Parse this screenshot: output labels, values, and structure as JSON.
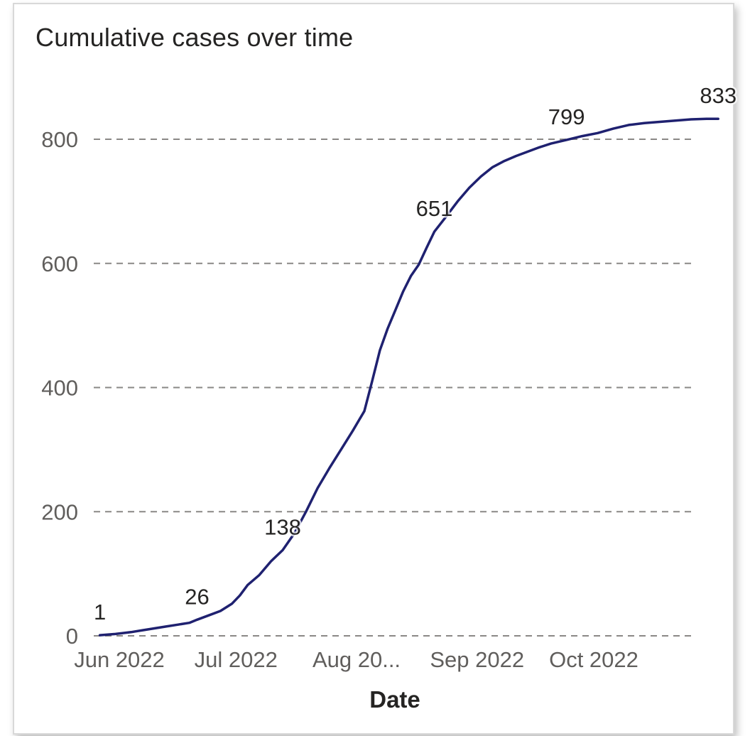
{
  "chart_data": {
    "type": "line",
    "title": "Cumulative cases over time",
    "xlabel": "Date",
    "ylabel": "",
    "ylim": [
      0,
      900
    ],
    "yticks": [
      0,
      200,
      400,
      600,
      800
    ],
    "grid": "dashed horizontal",
    "line_color": "#1f2170",
    "x_tick_labels": [
      {
        "date": "2022-06-01",
        "label": "Jun 2022"
      },
      {
        "date": "2022-07-01",
        "label": "Jul 2022"
      },
      {
        "date": "2022-08-01",
        "label": "Aug 20..."
      },
      {
        "date": "2022-09-01",
        "label": "Sep 2022"
      },
      {
        "date": "2022-10-01",
        "label": "Oct 2022"
      }
    ],
    "series": [
      {
        "points": [
          [
            "2022-05-27",
            1
          ],
          [
            "2022-05-31",
            3
          ],
          [
            "2022-06-04",
            6
          ],
          [
            "2022-06-07",
            9
          ],
          [
            "2022-06-10",
            12
          ],
          [
            "2022-06-13",
            15
          ],
          [
            "2022-06-16",
            18
          ],
          [
            "2022-06-19",
            21
          ],
          [
            "2022-06-21",
            26
          ],
          [
            "2022-06-24",
            33
          ],
          [
            "2022-06-27",
            40
          ],
          [
            "2022-06-30",
            52
          ],
          [
            "2022-07-02",
            65
          ],
          [
            "2022-07-04",
            82
          ],
          [
            "2022-07-07",
            98
          ],
          [
            "2022-07-10",
            120
          ],
          [
            "2022-07-13",
            138
          ],
          [
            "2022-07-16",
            165
          ],
          [
            "2022-07-19",
            200
          ],
          [
            "2022-07-22",
            238
          ],
          [
            "2022-07-25",
            270
          ],
          [
            "2022-07-28",
            300
          ],
          [
            "2022-07-31",
            330
          ],
          [
            "2022-08-03",
            362
          ],
          [
            "2022-08-05",
            410
          ],
          [
            "2022-08-07",
            460
          ],
          [
            "2022-08-09",
            495
          ],
          [
            "2022-08-11",
            525
          ],
          [
            "2022-08-13",
            555
          ],
          [
            "2022-08-15",
            580
          ],
          [
            "2022-08-17",
            598
          ],
          [
            "2022-08-19",
            625
          ],
          [
            "2022-08-21",
            651
          ],
          [
            "2022-08-24",
            675
          ],
          [
            "2022-08-27",
            700
          ],
          [
            "2022-08-30",
            722
          ],
          [
            "2022-09-02",
            740
          ],
          [
            "2022-09-05",
            755
          ],
          [
            "2022-09-08",
            765
          ],
          [
            "2022-09-11",
            773
          ],
          [
            "2022-09-14",
            780
          ],
          [
            "2022-09-17",
            787
          ],
          [
            "2022-09-20",
            793
          ],
          [
            "2022-09-24",
            799
          ],
          [
            "2022-09-28",
            805
          ],
          [
            "2022-10-02",
            810
          ],
          [
            "2022-10-06",
            817
          ],
          [
            "2022-10-10",
            823
          ],
          [
            "2022-10-14",
            826
          ],
          [
            "2022-10-18",
            828
          ],
          [
            "2022-10-22",
            830
          ],
          [
            "2022-10-26",
            832
          ],
          [
            "2022-10-30",
            833
          ],
          [
            "2022-11-02",
            833
          ]
        ]
      }
    ],
    "data_labels": [
      {
        "date": "2022-05-27",
        "value": 1,
        "text": "1"
      },
      {
        "date": "2022-06-21",
        "value": 26,
        "text": "26"
      },
      {
        "date": "2022-07-13",
        "value": 138,
        "text": "138"
      },
      {
        "date": "2022-08-21",
        "value": 651,
        "text": "651"
      },
      {
        "date": "2022-09-24",
        "value": 799,
        "text": "799"
      },
      {
        "date": "2022-11-02",
        "value": 833,
        "text": "833"
      }
    ]
  }
}
